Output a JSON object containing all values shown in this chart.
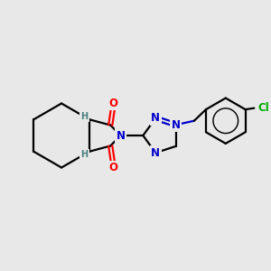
{
  "bg_color": "#e8e8e8",
  "bond_color": "#000000",
  "N_color": "#0000cc",
  "O_color": "#ff0000",
  "Cl_color": "#00aa00",
  "H_color": "#4a8080",
  "bond_width": 1.6,
  "font_size_atom": 8.5,
  "font_size_small": 7.0,
  "xlim": [
    0,
    10
  ],
  "ylim": [
    0,
    10
  ]
}
